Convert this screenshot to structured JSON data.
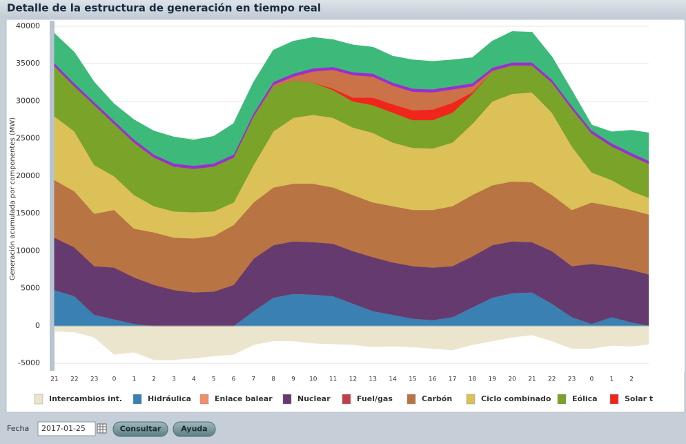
{
  "header": {
    "title": "Detalle de la estructura de generación en tiempo real"
  },
  "chart_data": {
    "type": "area",
    "stacked": true,
    "ylabel": "Generación acumulada por componentes (MW)",
    "categories": [
      "21",
      "22",
      "23",
      "0",
      "1",
      "2",
      "3",
      "4",
      "5",
      "6",
      "7",
      "8",
      "9",
      "10",
      "11",
      "12",
      "13",
      "14",
      "15",
      "16",
      "17",
      "18",
      "19",
      "20",
      "21",
      "22",
      "23",
      "0",
      "1",
      "2",
      null
    ],
    "ylim": [
      -6000,
      40000
    ],
    "yticks": [
      -5000,
      0,
      5000,
      10000,
      15000,
      20000,
      25000,
      30000,
      35000,
      40000
    ],
    "grid": true,
    "legend": "bottom",
    "series": [
      {
        "name": "Intercambios int.",
        "color": "#ebe4cb",
        "values": [
          -700,
          -800,
          -1500,
          -3800,
          -3500,
          -4500,
          -4500,
          -4300,
          -4000,
          -3800,
          -2500,
          -2000,
          -2000,
          -2300,
          -2400,
          -2500,
          -2800,
          -2700,
          -2800,
          -3000,
          -3200,
          -2500,
          -2000,
          -1500,
          -1200,
          -2000,
          -3000,
          -3000,
          -2600,
          -2700,
          -2400
        ]
      },
      {
        "name": "Hidráulica",
        "color": "#3a80b2",
        "values": [
          4800,
          4000,
          1500,
          900,
          300,
          0,
          0,
          0,
          0,
          0,
          2000,
          3800,
          4300,
          4200,
          4000,
          3000,
          2000,
          1500,
          1000,
          800,
          1200,
          2500,
          3800,
          4400,
          4500,
          3000,
          1200,
          300,
          1200,
          500,
          0
        ]
      },
      {
        "name": "Enlace balear",
        "color": "#f0906a",
        "values": [
          0,
          0,
          0,
          0,
          0,
          0,
          0,
          0,
          0,
          0,
          0,
          0,
          0,
          0,
          0,
          0,
          0,
          0,
          0,
          0,
          0,
          0,
          0,
          0,
          0,
          0,
          0,
          0,
          0,
          0,
          0
        ]
      },
      {
        "name": "Nuclear",
        "color": "#653a6f",
        "values": [
          7000,
          6500,
          6500,
          6900,
          6200,
          5500,
          4800,
          4500,
          4600,
          5500,
          7000,
          7000,
          7000,
          7000,
          7000,
          7000,
          7200,
          7000,
          7000,
          7000,
          6800,
          6800,
          7000,
          6900,
          6700,
          7000,
          6800,
          8000,
          6800,
          7000,
          6800
        ]
      },
      {
        "name": "Fuel/gas",
        "color": "#c0404a",
        "values": [
          0,
          0,
          0,
          0,
          0,
          0,
          0,
          0,
          0,
          0,
          0,
          0,
          0,
          0,
          0,
          0,
          0,
          0,
          0,
          0,
          0,
          0,
          0,
          0,
          0,
          0,
          0,
          0,
          0,
          0,
          0
        ]
      },
      {
        "name": "Carbón",
        "color": "#b87443",
        "values": [
          7700,
          7500,
          7000,
          7700,
          6500,
          7000,
          7000,
          7200,
          7400,
          8000,
          7500,
          7700,
          7700,
          7800,
          7500,
          7500,
          7300,
          7500,
          7500,
          7700,
          8000,
          8200,
          8000,
          8000,
          8000,
          7500,
          7500,
          8200,
          8000,
          8000,
          8000
        ]
      },
      {
        "name": "Ciclo combinado",
        "color": "#dcc058",
        "values": [
          8500,
          8000,
          6500,
          4500,
          4500,
          3500,
          3500,
          3500,
          3300,
          3000,
          5000,
          7500,
          8800,
          9200,
          9300,
          9000,
          9300,
          8500,
          8300,
          8200,
          8500,
          9500,
          11200,
          11700,
          12000,
          11000,
          8500,
          4000,
          3500,
          2500,
          2200
        ]
      },
      {
        "name": "Eólica",
        "color": "#7aa329",
        "values": [
          6700,
          6000,
          8000,
          7000,
          7000,
          6500,
          6000,
          5800,
          6000,
          6000,
          6500,
          6000,
          5000,
          4300,
          3700,
          3500,
          3700,
          4000,
          3700,
          3800,
          4000,
          4000,
          4000,
          3800,
          3600,
          4000,
          5000,
          5200,
          4500,
          4700,
          4500
        ]
      },
      {
        "name": "Solar t",
        "color": "#f0261c",
        "values": [
          0,
          0,
          0,
          0,
          0,
          0,
          0,
          0,
          0,
          0,
          0,
          0,
          0,
          0,
          200,
          500,
          1000,
          1100,
          1300,
          1400,
          1300,
          200,
          0,
          0,
          0,
          0,
          0,
          0,
          0,
          0,
          0
        ]
      },
      {
        "color": "#cc7248",
        "values": [
          0,
          0,
          0,
          0,
          0,
          0,
          0,
          0,
          0,
          0,
          0,
          200,
          500,
          1500,
          2500,
          3000,
          2800,
          2500,
          2500,
          2300,
          1800,
          800,
          100,
          0,
          0,
          0,
          0,
          0,
          0,
          0,
          0
        ]
      },
      {
        "color": "#9a2fd0",
        "values": [
          400,
          400,
          400,
          400,
          400,
          400,
          400,
          400,
          400,
          400,
          400,
          400,
          400,
          400,
          400,
          400,
          400,
          400,
          400,
          400,
          400,
          400,
          400,
          400,
          400,
          400,
          400,
          400,
          400,
          400,
          400
        ]
      },
      {
        "color": "#3dba7a",
        "values": [
          3900,
          4100,
          2600,
          2200,
          2600,
          3100,
          3500,
          3400,
          3600,
          4100,
          4100,
          4200,
          4300,
          4100,
          3600,
          3600,
          3500,
          3500,
          3800,
          3700,
          3500,
          3400,
          3500,
          4100,
          4000,
          3000,
          2000,
          700,
          1500,
          3000,
          3800
        ]
      }
    ]
  },
  "form": {
    "date_label": "Fecha",
    "date_value": "2017-01-25",
    "submit": "Consultar",
    "help": "Ayuda"
  }
}
